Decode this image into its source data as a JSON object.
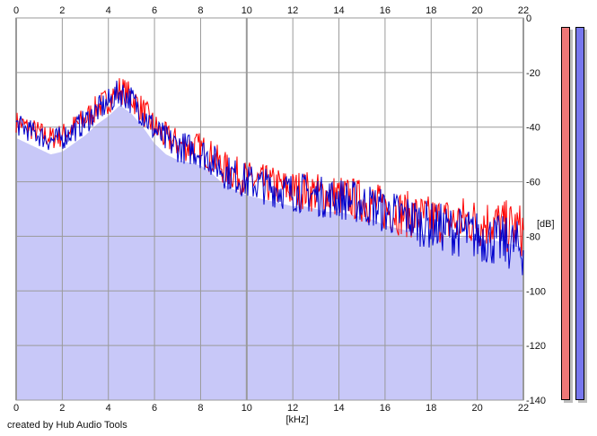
{
  "chart_data": {
    "type": "area",
    "xlabel": "[kHz]",
    "ylabel": "[dB]",
    "xlim": [
      0,
      22
    ],
    "ylim": [
      -140,
      0
    ],
    "x_ticks": [
      "0",
      "2",
      "4",
      "6",
      "8",
      "10",
      "12",
      "14",
      "16",
      "18",
      "20",
      "22"
    ],
    "y_ticks": [
      "0",
      "-20",
      "-40",
      "-60",
      "-80",
      "-100",
      "-120",
      "-140"
    ],
    "grid": true,
    "series": [
      {
        "color": "#ff0000",
        "x": [
          0,
          0.5,
          1,
          1.5,
          2,
          2.5,
          3,
          3.5,
          4,
          4.5,
          5,
          5.5,
          6,
          6.5,
          7,
          7.5,
          8,
          8.5,
          9,
          9.5,
          10,
          10.5,
          11,
          11.5,
          12,
          12.5,
          13,
          13.5,
          14,
          14.5,
          15,
          15.5,
          16,
          16.5,
          17,
          17.5,
          18,
          18.5,
          19,
          19.5,
          20,
          20.5,
          21,
          21.5,
          22
        ],
        "values": [
          -38,
          -40,
          -42,
          -44,
          -43,
          -40,
          -37,
          -33,
          -30,
          -26,
          -29,
          -34,
          -40,
          -44,
          -46,
          -47,
          -48,
          -51,
          -55,
          -57,
          -59,
          -60,
          -61,
          -62,
          -63,
          -63,
          -64,
          -65,
          -65,
          -66,
          -67,
          -68,
          -70,
          -71,
          -72,
          -73,
          -74,
          -74,
          -75,
          -74,
          -75,
          -75,
          -76,
          -77,
          -78
        ]
      },
      {
        "color": "#0000cc",
        "x": [
          0,
          0.5,
          1,
          1.5,
          2,
          2.5,
          3,
          3.5,
          4,
          4.5,
          5,
          5.5,
          6,
          6.5,
          7,
          7.5,
          8,
          8.5,
          9,
          9.5,
          10,
          10.5,
          11,
          11.5,
          12,
          12.5,
          13,
          13.5,
          14,
          14.5,
          15,
          15.5,
          16,
          16.5,
          17,
          17.5,
          18,
          18.5,
          19,
          19.5,
          20,
          20.5,
          21,
          21.5,
          22
        ],
        "values": [
          -39,
          -41,
          -43,
          -45,
          -44,
          -41,
          -38,
          -34,
          -31,
          -27,
          -30,
          -35,
          -41,
          -45,
          -47,
          -48,
          -49,
          -52,
          -56,
          -58,
          -60,
          -61,
          -62,
          -63,
          -64,
          -64,
          -65,
          -66,
          -66,
          -67,
          -68,
          -69,
          -71,
          -72,
          -73,
          -75,
          -76,
          -77,
          -78,
          -79,
          -80,
          -81,
          -82,
          -83,
          -85
        ]
      }
    ],
    "fill_color": "#c8c8f8"
  },
  "meters": [
    {
      "color": "#ee7878"
    },
    {
      "color": "#7878ee"
    }
  ],
  "credit": "created by Hub Audio Tools"
}
